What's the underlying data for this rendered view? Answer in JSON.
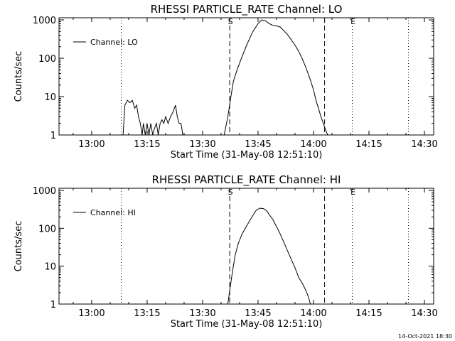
{
  "footer": {
    "timestamp": "14-Oct-2021 18:30"
  },
  "chart_data": [
    {
      "type": "line",
      "title": "RHESSI PARTICLE_RATE Channel: LO",
      "xlabel": "Start Time (31-May-08 12:51:10)",
      "ylabel": "Counts/sec",
      "y_scale": "log",
      "xlim": [
        "12:51:10",
        "14:32:30"
      ],
      "ylim": [
        1,
        1000
      ],
      "x_ticks": [
        "13:00",
        "13:15",
        "13:30",
        "13:45",
        "14:00",
        "14:15",
        "14:30"
      ],
      "y_ticks": [
        "1",
        "10",
        "100",
        "1000"
      ],
      "legend": {
        "position": "top-left",
        "label": "Channel: LO"
      },
      "markers": [
        {
          "time": "13:08:00",
          "style": "dotted",
          "label": ""
        },
        {
          "time": "13:37:20",
          "style": "dashed",
          "label": "S"
        },
        {
          "time": "14:03:00",
          "style": "dashed",
          "label": ""
        },
        {
          "time": "14:10:30",
          "style": "dotted",
          "label": "E"
        },
        {
          "time": "14:25:40",
          "style": "dotted",
          "label": ""
        }
      ],
      "series": [
        {
          "name": "Channel: LO",
          "segments": [
            [
              [
                "13:08:30",
                1
              ],
              [
                "13:09:00",
                6
              ],
              [
                "13:09:40",
                8
              ],
              [
                "13:10:20",
                7
              ],
              [
                "13:11:00",
                8
              ],
              [
                "13:11:40",
                5
              ],
              [
                "13:12:10",
                6
              ],
              [
                "13:12:40",
                3
              ],
              [
                "13:13:10",
                2
              ],
              [
                "13:13:40",
                1
              ],
              [
                "13:14:00",
                2
              ],
              [
                "13:14:30",
                1
              ],
              [
                "13:15:00",
                2
              ],
              [
                "13:15:30",
                1
              ],
              [
                "13:16:00",
                2
              ],
              [
                "13:16:30",
                1
              ],
              [
                "13:17:00",
                1.5
              ],
              [
                "13:17:30",
                2
              ],
              [
                "13:18:00",
                1
              ],
              [
                "13:18:30",
                2
              ],
              [
                "13:19:00",
                2.5
              ],
              [
                "13:19:30",
                2
              ],
              [
                "13:20:00",
                3
              ],
              [
                "13:20:40",
                2
              ],
              [
                "13:21:20",
                3
              ],
              [
                "13:22:00",
                4
              ],
              [
                "13:22:40",
                6
              ],
              [
                "13:23:10",
                3
              ],
              [
                "13:23:40",
                2
              ],
              [
                "13:24:10",
                2
              ],
              [
                "13:24:40",
                1
              ]
            ],
            [
              [
                "13:35:50",
                1
              ],
              [
                "13:36:50",
                3
              ],
              [
                "13:37:40",
                10
              ],
              [
                "13:38:20",
                25
              ],
              [
                "13:39:20",
                50
              ],
              [
                "13:40:40",
                110
              ],
              [
                "13:42:00",
                230
              ],
              [
                "13:43:30",
                480
              ],
              [
                "13:45:00",
                800
              ],
              [
                "13:46:00",
                1000
              ],
              [
                "13:47:00",
                950
              ],
              [
                "13:48:00",
                800
              ],
              [
                "13:49:00",
                720
              ],
              [
                "13:50:00",
                700
              ],
              [
                "13:51:00",
                650
              ],
              [
                "13:52:00",
                520
              ],
              [
                "13:53:00",
                410
              ],
              [
                "13:54:00",
                300
              ],
              [
                "13:55:00",
                220
              ],
              [
                "13:56:00",
                150
              ],
              [
                "13:57:00",
                95
              ],
              [
                "13:58:00",
                55
              ],
              [
                "13:59:00",
                30
              ],
              [
                "14:00:00",
                15
              ],
              [
                "14:00:40",
                8
              ],
              [
                "14:01:20",
                5
              ],
              [
                "14:02:00",
                3
              ],
              [
                "14:02:40",
                2
              ],
              [
                "14:03:20",
                1.3
              ],
              [
                "14:03:50",
                1
              ]
            ]
          ]
        }
      ]
    },
    {
      "type": "line",
      "title": "RHESSI PARTICLE_RATE Channel: HI",
      "xlabel": "Start Time (31-May-08 12:51:10)",
      "ylabel": "Counts/sec",
      "y_scale": "log",
      "xlim": [
        "12:51:10",
        "14:32:30"
      ],
      "ylim": [
        1,
        1000
      ],
      "x_ticks": [
        "13:00",
        "13:15",
        "13:30",
        "13:45",
        "14:00",
        "14:15",
        "14:30"
      ],
      "y_ticks": [
        "1",
        "10",
        "100",
        "1000"
      ],
      "legend": {
        "position": "top-left",
        "label": "Channel: HI"
      },
      "markers": [
        {
          "time": "13:08:00",
          "style": "dotted",
          "label": ""
        },
        {
          "time": "13:37:20",
          "style": "dashed",
          "label": "S"
        },
        {
          "time": "14:03:00",
          "style": "dashed",
          "label": ""
        },
        {
          "time": "14:10:30",
          "style": "dotted",
          "label": "E"
        },
        {
          "time": "14:25:40",
          "style": "dotted",
          "label": ""
        }
      ],
      "series": [
        {
          "name": "Channel: HI",
          "segments": [
            [
              [
                "13:36:50",
                1
              ],
              [
                "13:37:30",
                3
              ],
              [
                "13:38:10",
                8
              ],
              [
                "13:38:50",
                20
              ],
              [
                "13:39:40",
                40
              ],
              [
                "13:40:40",
                70
              ],
              [
                "13:42:00",
                120
              ],
              [
                "13:43:30",
                210
              ],
              [
                "13:44:30",
                300
              ],
              [
                "13:45:30",
                340
              ],
              [
                "13:46:30",
                330
              ],
              [
                "13:47:20",
                290
              ],
              [
                "13:48:10",
                220
              ],
              [
                "13:49:00",
                170
              ],
              [
                "13:50:00",
                110
              ],
              [
                "13:51:00",
                70
              ],
              [
                "13:52:00",
                42
              ],
              [
                "13:53:00",
                25
              ],
              [
                "13:54:00",
                15
              ],
              [
                "13:55:00",
                9
              ],
              [
                "13:56:00",
                5
              ],
              [
                "13:57:00",
                3.5
              ],
              [
                "13:58:00",
                2.2
              ],
              [
                "13:58:40",
                1.5
              ],
              [
                "13:59:10",
                1
              ]
            ]
          ]
        }
      ]
    }
  ]
}
